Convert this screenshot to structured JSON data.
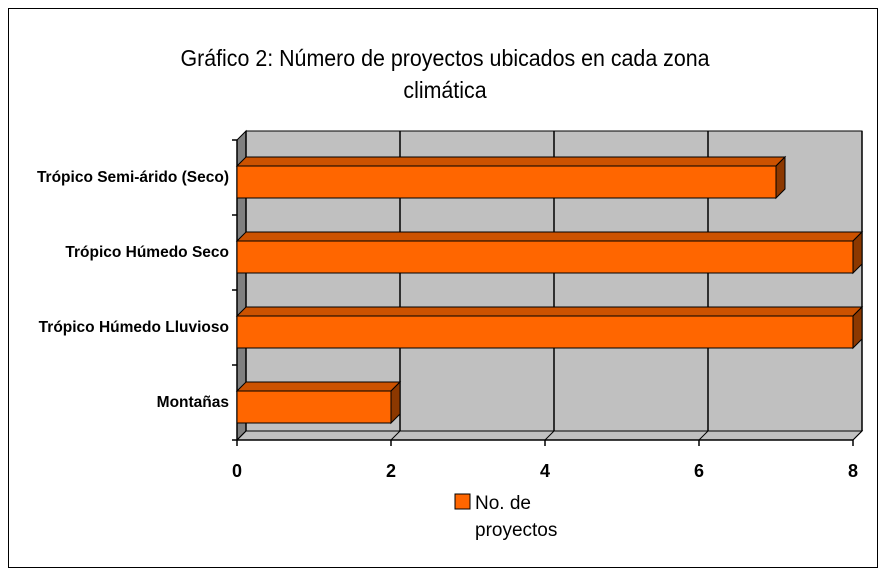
{
  "chart_data": {
    "type": "bar",
    "orientation": "horizontal",
    "title": "Gráfico 2: Número de proyectos ubicados en cada zona climática",
    "categories": [
      "Trópico Semi-árido (Seco)",
      "Trópico Húmedo Seco",
      "Trópico Húmedo Lluvioso",
      "Montañas"
    ],
    "series": [
      {
        "name": "No. de proyectos",
        "color": "#FF6600",
        "values": [
          7,
          8,
          8,
          2
        ]
      }
    ],
    "xlim": [
      0,
      8
    ],
    "xticks": [
      0,
      2,
      4,
      6,
      8
    ],
    "grid": true,
    "legend": "bottom"
  }
}
